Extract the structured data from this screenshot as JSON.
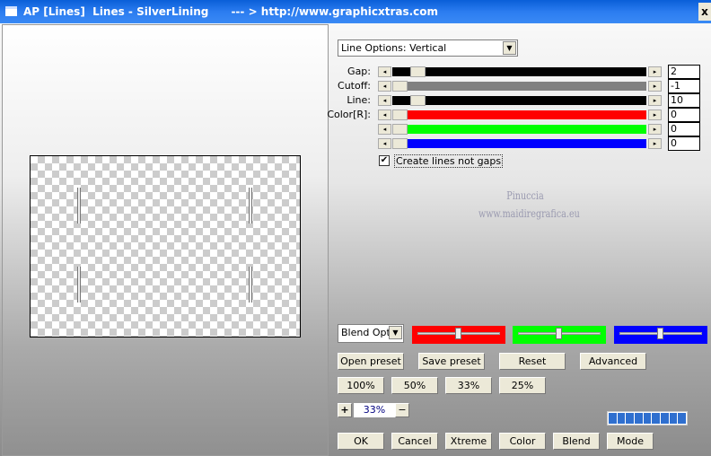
{
  "window": {
    "title": "AP [Lines]  Lines - SilverLining      --- > http://www.graphicxtras.com",
    "close_label": "x"
  },
  "options_select": {
    "value": "Line Options: Vertical"
  },
  "sliders": [
    {
      "label": "Gap:",
      "value": "2",
      "color": "#000000",
      "position": 0.03
    },
    {
      "label": "Cutoff:",
      "value": "-1",
      "color": "#808080",
      "position": 0.0
    },
    {
      "label": "Line:",
      "value": "10",
      "color": "#000000",
      "position": 0.03
    },
    {
      "label": "Color[R]:",
      "value": "0",
      "color": "#ff0000",
      "position": 0.0
    },
    {
      "label": "",
      "value": "0",
      "color": "#00ff00",
      "position": 0.0
    },
    {
      "label": "",
      "value": "0",
      "color": "#0000ff",
      "position": 0.0
    }
  ],
  "checkbox": {
    "label": "Create lines not gaps",
    "checked": true
  },
  "watermark": {
    "line1": "Pinuccia",
    "line2": "www.maidiregrafica.eu"
  },
  "blend": {
    "select_value": "Blend Optic",
    "sliders": [
      {
        "color": "#ff0000",
        "position": 0.5
      },
      {
        "color": "#00ff00",
        "position": 0.5
      },
      {
        "color": "#0000ff",
        "position": 0.5
      }
    ]
  },
  "buttons": {
    "open_preset": "Open preset",
    "save_preset": "Save preset",
    "reset": "Reset",
    "advanced": "Advanced",
    "z100": "100%",
    "z50": "50%",
    "z33": "33%",
    "z25": "25%",
    "plus": "+",
    "minus": "−",
    "ok": "OK",
    "cancel": "Cancel",
    "xtreme": "Xtreme",
    "color": "Color",
    "blend": "Blend",
    "mode": "Mode"
  },
  "zoom": {
    "value": "33%"
  },
  "progress": {
    "segments": 9,
    "fill": 1.0
  }
}
